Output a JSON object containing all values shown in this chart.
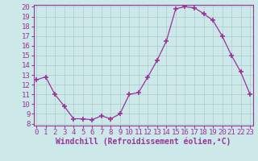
{
  "x": [
    0,
    1,
    2,
    3,
    4,
    5,
    6,
    7,
    8,
    9,
    10,
    11,
    12,
    13,
    14,
    15,
    16,
    17,
    18,
    19,
    20,
    21,
    22,
    23
  ],
  "y": [
    12.5,
    12.8,
    11.0,
    9.8,
    8.5,
    8.5,
    8.4,
    8.8,
    8.5,
    9.0,
    11.0,
    11.2,
    12.8,
    14.5,
    16.5,
    19.8,
    20.0,
    19.9,
    19.3,
    18.6,
    17.0,
    15.0,
    13.3,
    11.0
  ],
  "line_color": "#993399",
  "marker": "+",
  "marker_size": 4,
  "marker_linewidth": 1.2,
  "background_color": "#cce8e8",
  "grid_color": "#b0d0d0",
  "xlabel": "Windchill (Refroidissement éolien,°C)",
  "xlabel_fontsize": 7,
  "tick_fontsize": 6.5,
  "ylim": [
    8,
    20
  ],
  "xlim": [
    0,
    23
  ],
  "yticks": [
    8,
    9,
    10,
    11,
    12,
    13,
    14,
    15,
    16,
    17,
    18,
    19,
    20
  ],
  "xticks": [
    0,
    1,
    2,
    3,
    4,
    5,
    6,
    7,
    8,
    9,
    10,
    11,
    12,
    13,
    14,
    15,
    16,
    17,
    18,
    19,
    20,
    21,
    22,
    23
  ]
}
